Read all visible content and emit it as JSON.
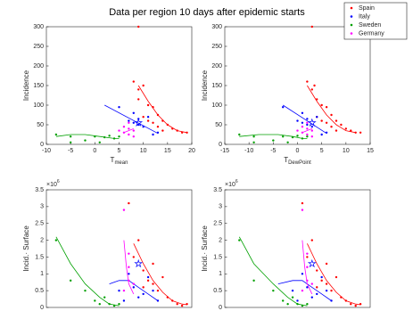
{
  "title": "Data per region 10 days after epidemic starts",
  "legend": {
    "names": [
      "Spain",
      "Italy",
      "Sweden",
      "Germany"
    ],
    "colors": [
      "#ff0000",
      "#0000ff",
      "#00a000",
      "#ff00ff"
    ]
  },
  "chart_data": [
    {
      "type": "scatter",
      "xlabel": "T",
      "xlabel_sub": "mean",
      "ylabel": "Incidence",
      "xlim": [
        -10,
        20
      ],
      "xticks": [
        -10,
        -5,
        0,
        5,
        10,
        15,
        20
      ],
      "ylim": [
        0,
        300
      ],
      "yticks": [
        0,
        50,
        100,
        150,
        200,
        250,
        300
      ],
      "series": [
        {
          "color": "#ff0000",
          "x": [
            8,
            9,
            10,
            9,
            11,
            12,
            13,
            14,
            15,
            12,
            16,
            17,
            18,
            19,
            10,
            13,
            9,
            14,
            11
          ],
          "values": [
            160,
            140,
            150,
            115,
            100,
            95,
            75,
            60,
            50,
            55,
            40,
            35,
            30,
            30,
            70,
            45,
            300,
            35,
            60
          ]
        },
        {
          "color": "#0000ff",
          "x": [
            5,
            7,
            8,
            9,
            10,
            11,
            12,
            8,
            13,
            9
          ],
          "values": [
            95,
            60,
            55,
            50,
            45,
            70,
            25,
            80,
            30,
            65
          ]
        },
        {
          "color": "#00a000",
          "x": [
            -8,
            -5,
            -2,
            0,
            2,
            3,
            4,
            1,
            -5,
            5
          ],
          "values": [
            25,
            20,
            10,
            20,
            18,
            22,
            15,
            5,
            5,
            20
          ]
        },
        {
          "color": "#ff00ff",
          "x": [
            6,
            7,
            7,
            8,
            6,
            8,
            5,
            7
          ],
          "values": [
            30,
            40,
            25,
            35,
            45,
            20,
            35,
            55
          ]
        }
      ],
      "fits": [
        {
          "color": "#ff0000",
          "x": [
            9,
            11,
            13,
            15,
            17,
            19
          ],
          "values": [
            150,
            110,
            75,
            50,
            35,
            30
          ]
        },
        {
          "color": "#0000ff",
          "x": [
            2,
            13
          ],
          "values": [
            100,
            28
          ]
        },
        {
          "color": "#00a000",
          "x": [
            -8,
            -5,
            -2,
            1,
            4,
            5
          ],
          "values": [
            20,
            25,
            25,
            20,
            15,
            15
          ]
        },
        {
          "color": "#ff00ff",
          "x": [
            6,
            8
          ],
          "values": [
            30,
            40
          ]
        }
      ],
      "star": {
        "color": "#0000ff",
        "x": 9,
        "value": 55
      }
    },
    {
      "type": "scatter",
      "xlabel": "T",
      "xlabel_sub": "DewPoint",
      "ylabel": "Incidence",
      "xlim": [
        -15,
        15
      ],
      "xticks": [
        -15,
        -10,
        -5,
        0,
        5,
        10,
        15
      ],
      "ylim": [
        0,
        300
      ],
      "yticks": [
        0,
        50,
        100,
        150,
        200,
        250,
        300
      ],
      "series": [
        {
          "color": "#ff0000",
          "x": [
            2,
            3,
            3.5,
            4,
            5,
            6,
            7,
            8,
            9,
            6,
            10,
            11,
            12,
            13,
            4,
            7,
            3,
            8,
            5
          ],
          "values": [
            160,
            140,
            150,
            115,
            100,
            95,
            75,
            60,
            50,
            55,
            40,
            35,
            30,
            30,
            70,
            45,
            300,
            35,
            60
          ]
        },
        {
          "color": "#0000ff",
          "x": [
            -3,
            0,
            1,
            2,
            3,
            4,
            5,
            1,
            6,
            2
          ],
          "values": [
            95,
            60,
            55,
            50,
            45,
            70,
            25,
            80,
            30,
            65
          ]
        },
        {
          "color": "#00a000",
          "x": [
            -12,
            -9,
            -5,
            -3,
            -1,
            0,
            1,
            -2,
            -9,
            2
          ],
          "values": [
            25,
            20,
            10,
            20,
            18,
            22,
            15,
            5,
            5,
            20
          ]
        },
        {
          "color": "#ff00ff",
          "x": [
            1,
            2,
            2,
            3,
            1,
            3,
            0,
            2
          ],
          "values": [
            30,
            40,
            25,
            35,
            45,
            20,
            35,
            55
          ]
        }
      ],
      "fits": [
        {
          "color": "#ff0000",
          "x": [
            2,
            4,
            6,
            8,
            10,
            12
          ],
          "values": [
            150,
            110,
            75,
            50,
            35,
            30
          ]
        },
        {
          "color": "#0000ff",
          "x": [
            -3,
            6
          ],
          "values": [
            100,
            28
          ]
        },
        {
          "color": "#00a000",
          "x": [
            -12,
            -8,
            -4,
            -1,
            1,
            2
          ],
          "values": [
            20,
            25,
            25,
            20,
            15,
            15
          ]
        },
        {
          "color": "#ff00ff",
          "x": [
            1,
            3
          ],
          "values": [
            30,
            40
          ]
        }
      ],
      "star": {
        "color": "#0000ff",
        "x": 3,
        "value": 55
      }
    },
    {
      "type": "scatter",
      "ylabel": "Incid.· Surface",
      "y_scale_base": "×10",
      "y_scale_power": "6",
      "xlim": [
        -10,
        20
      ],
      "ylim": [
        0,
        3.5
      ],
      "yticks": [
        0,
        0.5,
        1,
        1.5,
        2,
        2.5,
        3,
        3.5
      ],
      "series": [
        {
          "color": "#ff0000",
          "x": [
            7,
            8,
            9,
            10,
            11,
            12,
            13,
            14,
            15,
            16,
            17,
            18,
            19,
            12,
            10
          ],
          "values": [
            3.1,
            1.5,
            2.0,
            1.1,
            0.8,
            0.7,
            0.5,
            0.9,
            0.3,
            0.2,
            0.1,
            0.05,
            0.1,
            1.3,
            0.6
          ]
        },
        {
          "color": "#0000ff",
          "x": [
            5,
            7,
            8,
            9,
            10,
            11,
            12,
            13,
            6
          ],
          "values": [
            0.5,
            1.0,
            0.6,
            0.3,
            0.4,
            0.9,
            0.5,
            0.2,
            0.2
          ]
        },
        {
          "color": "#00a000",
          "x": [
            -8,
            -5,
            -2,
            0,
            1,
            2,
            3,
            4,
            5
          ],
          "values": [
            2.0,
            0.8,
            0.5,
            0.2,
            0.1,
            0.3,
            0.1,
            0.05,
            0.1
          ]
        },
        {
          "color": "#ff00ff",
          "x": [
            6,
            7,
            7,
            6,
            8,
            7
          ],
          "values": [
            2.9,
            1.6,
            0.8,
            0.5,
            0.7,
            1.2
          ]
        }
      ],
      "fits": [
        {
          "color": "#ff0000",
          "x": [
            8,
            10,
            12,
            14,
            16,
            18,
            19
          ],
          "values": [
            1.9,
            1.3,
            0.8,
            0.45,
            0.2,
            0.1,
            0.08
          ]
        },
        {
          "color": "#0000ff",
          "x": [
            3,
            5,
            7,
            9,
            11,
            13
          ],
          "values": [
            0.7,
            0.8,
            0.8,
            0.6,
            0.4,
            0.2
          ]
        },
        {
          "color": "#00a000",
          "x": [
            -8,
            -5,
            -2,
            1,
            3,
            5
          ],
          "values": [
            2.1,
            1.3,
            0.7,
            0.3,
            0.1,
            0.05
          ]
        },
        {
          "color": "#ff00ff",
          "x": [
            6,
            6.5,
            7,
            8
          ],
          "values": [
            2.0,
            1.2,
            0.7,
            0.4
          ]
        }
      ],
      "star": {
        "color": "#0000ff",
        "x": 9,
        "value": 1.3
      }
    },
    {
      "type": "scatter",
      "ylabel": "Incid.· Surface",
      "y_scale_base": "×10",
      "y_scale_power": "6",
      "xlim": [
        -15,
        15
      ],
      "ylim": [
        0,
        3.5
      ],
      "yticks": [
        0,
        0.5,
        1,
        1.5,
        2,
        2.5,
        3,
        3.5
      ],
      "series": [
        {
          "color": "#ff0000",
          "x": [
            1,
            2,
            3,
            4,
            5,
            6,
            7,
            8,
            9,
            10,
            11,
            12,
            13,
            6,
            4
          ],
          "values": [
            3.1,
            1.5,
            2.0,
            1.1,
            0.8,
            0.7,
            0.5,
            0.9,
            0.3,
            0.2,
            0.1,
            0.05,
            0.1,
            1.3,
            0.6
          ]
        },
        {
          "color": "#0000ff",
          "x": [
            -1,
            1,
            2,
            3,
            4,
            5,
            6,
            7,
            0
          ],
          "values": [
            0.5,
            1.0,
            0.6,
            0.3,
            0.4,
            0.9,
            0.5,
            0.2,
            0.2
          ]
        },
        {
          "color": "#00a000",
          "x": [
            -12,
            -9,
            -5,
            -3,
            -2,
            -1,
            0,
            1,
            2
          ],
          "values": [
            2.0,
            0.8,
            0.5,
            0.2,
            0.1,
            0.3,
            0.1,
            0.05,
            0.1
          ]
        },
        {
          "color": "#ff00ff",
          "x": [
            1,
            2,
            2,
            1,
            3,
            2
          ],
          "values": [
            2.9,
            1.6,
            0.8,
            0.5,
            0.7,
            1.2
          ]
        }
      ],
      "fits": [
        {
          "color": "#ff0000",
          "x": [
            2,
            4,
            6,
            8,
            10,
            12,
            13
          ],
          "values": [
            1.9,
            1.3,
            0.8,
            0.45,
            0.2,
            0.1,
            0.08
          ]
        },
        {
          "color": "#0000ff",
          "x": [
            -4,
            -1,
            1,
            3,
            5,
            7
          ],
          "values": [
            0.7,
            0.8,
            0.8,
            0.6,
            0.4,
            0.2
          ]
        },
        {
          "color": "#00a000",
          "x": [
            -12,
            -9,
            -5,
            -2,
            0,
            2
          ],
          "values": [
            2.1,
            1.3,
            0.7,
            0.3,
            0.1,
            0.05
          ]
        },
        {
          "color": "#ff00ff",
          "x": [
            1,
            1.5,
            2,
            3
          ],
          "values": [
            2.0,
            1.2,
            0.7,
            0.4
          ]
        }
      ],
      "star": {
        "color": "#0000ff",
        "x": 3,
        "value": 1.3
      }
    }
  ]
}
